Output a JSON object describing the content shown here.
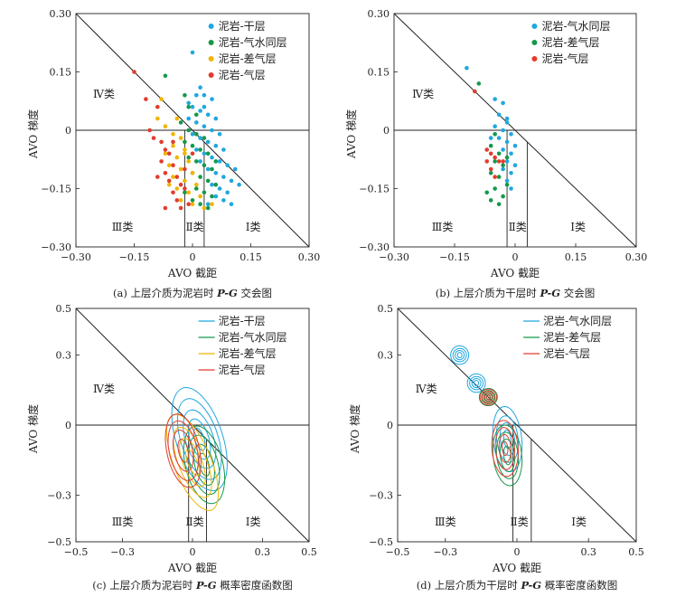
{
  "colors": {
    "blue": "#1fa7e0",
    "green": "#14994a",
    "yellow": "#f2b400",
    "red": "#e23c2e",
    "axis": "#222222"
  },
  "chart_data": [
    {
      "id": "a",
      "type": "scatter",
      "caption": "(a) 上层介质为泥岩时 P-G 交会图",
      "xlabel": "AVO 截距",
      "ylabel": "AVO 梯度",
      "xlim": [
        -0.3,
        0.3
      ],
      "ylim": [
        -0.3,
        0.3
      ],
      "xticks": [
        "−0.30",
        "−0.15",
        "0",
        "0.15",
        "0.30"
      ],
      "yticks": [
        "−0.30",
        "−0.15",
        "0",
        "0.15",
        "0.30"
      ],
      "class_labels": {
        "IV": "Ⅳ类",
        "III": "Ⅲ类",
        "II": "Ⅱ类",
        "I": "Ⅰ类"
      },
      "legend": [
        {
          "name": "泥岩-干层",
          "color": "#1fa7e0"
        },
        {
          "name": "泥岩-气水同层",
          "color": "#14994a"
        },
        {
          "name": "泥岩-差气层",
          "color": "#f2b400"
        },
        {
          "name": "泥岩-气层",
          "color": "#e23c2e"
        }
      ],
      "series": [
        {
          "name": "泥岩-干层",
          "color": "#1fa7e0",
          "points": [
            [
              0.0,
              0.2
            ],
            [
              0.02,
              0.11
            ],
            [
              0.03,
              0.09
            ],
            [
              0.05,
              0.08
            ],
            [
              0.0,
              0.06
            ],
            [
              0.02,
              0.05
            ],
            [
              0.04,
              0.04
            ],
            [
              0.06,
              0.03
            ],
            [
              -0.01,
              0.03
            ],
            [
              0.01,
              0.02
            ],
            [
              0.03,
              0.01
            ],
            [
              0.05,
              0.0
            ],
            [
              0.07,
              -0.01
            ],
            [
              0.0,
              -0.01
            ],
            [
              0.02,
              -0.02
            ],
            [
              0.04,
              -0.03
            ],
            [
              0.06,
              -0.04
            ],
            [
              0.08,
              -0.05
            ],
            [
              0.03,
              -0.06
            ],
            [
              0.05,
              -0.07
            ],
            [
              0.07,
              -0.08
            ],
            [
              0.09,
              -0.09
            ],
            [
              0.11,
              -0.1
            ],
            [
              0.04,
              -0.1
            ],
            [
              0.06,
              -0.11
            ],
            [
              0.08,
              -0.12
            ],
            [
              0.1,
              -0.13
            ],
            [
              0.12,
              -0.14
            ],
            [
              0.05,
              -0.14
            ],
            [
              0.07,
              -0.15
            ],
            [
              0.09,
              -0.16
            ],
            [
              0.06,
              -0.17
            ],
            [
              0.08,
              -0.18
            ],
            [
              0.1,
              -0.19
            ],
            [
              0.04,
              -0.19
            ],
            [
              0.02,
              -0.08
            ],
            [
              0.01,
              -0.05
            ],
            [
              -0.01,
              0.07
            ],
            [
              0.03,
              0.06
            ],
            [
              0.01,
              0.09
            ]
          ]
        },
        {
          "name": "泥岩-气水同层",
          "color": "#14994a",
          "points": [
            [
              -0.07,
              0.14
            ],
            [
              -0.02,
              0.09
            ],
            [
              -0.01,
              0.06
            ],
            [
              0.01,
              0.04
            ],
            [
              -0.03,
              0.02
            ],
            [
              -0.01,
              0.0
            ],
            [
              0.01,
              -0.01
            ],
            [
              0.03,
              -0.02
            ],
            [
              -0.02,
              -0.03
            ],
            [
              0.0,
              -0.04
            ],
            [
              0.02,
              -0.05
            ],
            [
              0.04,
              -0.06
            ],
            [
              -0.01,
              -0.07
            ],
            [
              0.01,
              -0.08
            ],
            [
              0.03,
              -0.09
            ],
            [
              0.05,
              -0.1
            ],
            [
              0.0,
              -0.11
            ],
            [
              0.02,
              -0.12
            ],
            [
              0.04,
              -0.13
            ],
            [
              0.06,
              -0.14
            ],
            [
              0.01,
              -0.15
            ],
            [
              0.03,
              -0.16
            ],
            [
              0.05,
              -0.17
            ],
            [
              0.0,
              -0.18
            ],
            [
              0.02,
              -0.19
            ],
            [
              0.04,
              -0.2
            ],
            [
              -0.02,
              -0.16
            ],
            [
              0.06,
              -0.08
            ]
          ]
        },
        {
          "name": "泥岩-差气层",
          "color": "#f2b400",
          "points": [
            [
              -0.08,
              0.08
            ],
            [
              -0.09,
              0.03
            ],
            [
              -0.07,
              0.01
            ],
            [
              -0.05,
              -0.01
            ],
            [
              -0.04,
              0.03
            ],
            [
              -0.03,
              -0.02
            ],
            [
              -0.05,
              -0.04
            ],
            [
              -0.02,
              -0.05
            ],
            [
              -0.04,
              -0.07
            ],
            [
              -0.01,
              -0.08
            ],
            [
              -0.06,
              -0.09
            ],
            [
              -0.03,
              -0.1
            ],
            [
              0.0,
              -0.11
            ],
            [
              -0.05,
              -0.12
            ],
            [
              -0.02,
              -0.13
            ],
            [
              0.01,
              -0.14
            ],
            [
              -0.04,
              -0.15
            ],
            [
              -0.01,
              -0.16
            ],
            [
              0.02,
              -0.17
            ],
            [
              -0.03,
              -0.18
            ],
            [
              0.0,
              -0.19
            ],
            [
              0.03,
              -0.2
            ],
            [
              0.05,
              -0.19
            ],
            [
              -0.06,
              -0.14
            ],
            [
              -0.02,
              -0.06
            ],
            [
              -0.07,
              -0.06
            ]
          ]
        },
        {
          "name": "泥岩-气层",
          "color": "#e23c2e",
          "points": [
            [
              -0.15,
              0.15
            ],
            [
              -0.12,
              0.08
            ],
            [
              -0.09,
              0.06
            ],
            [
              -0.11,
              0.0
            ],
            [
              -0.1,
              -0.02
            ],
            [
              -0.08,
              -0.03
            ],
            [
              -0.07,
              -0.05
            ],
            [
              -0.06,
              -0.06
            ],
            [
              -0.08,
              -0.08
            ],
            [
              -0.05,
              -0.09
            ],
            [
              -0.07,
              -0.11
            ],
            [
              -0.04,
              -0.12
            ],
            [
              -0.06,
              -0.13
            ],
            [
              -0.03,
              -0.14
            ],
            [
              -0.05,
              -0.16
            ],
            [
              -0.02,
              -0.15
            ],
            [
              -0.04,
              -0.18
            ],
            [
              -0.01,
              -0.19
            ],
            [
              -0.03,
              -0.2
            ],
            [
              -0.07,
              -0.2
            ],
            [
              -0.02,
              -0.1
            ],
            [
              0.0,
              -0.06
            ],
            [
              -0.09,
              -0.12
            ],
            [
              -0.05,
              -0.03
            ]
          ]
        }
      ]
    },
    {
      "id": "b",
      "type": "scatter",
      "caption": "(b) 上层介质为干层时 P-G 交会图",
      "xlabel": "AVO 截距",
      "ylabel": "AVO 梯度",
      "xlim": [
        -0.3,
        0.3
      ],
      "ylim": [
        -0.3,
        0.3
      ],
      "xticks": [
        "−0.30",
        "−0.15",
        "0",
        "0.15",
        "0.30"
      ],
      "yticks": [
        "−0.30",
        "−0.15",
        "0",
        "0.15",
        "0.30"
      ],
      "class_labels": {
        "IV": "Ⅳ类",
        "III": "Ⅲ类",
        "II": "Ⅱ类",
        "I": "Ⅰ类"
      },
      "legend": [
        {
          "name": "泥岩-气水同层",
          "color": "#1fa7e0"
        },
        {
          "name": "泥岩-差气层",
          "color": "#14994a"
        },
        {
          "name": "泥岩-气层",
          "color": "#e23c2e"
        }
      ],
      "series": [
        {
          "name": "泥岩-气水同层",
          "color": "#1fa7e0",
          "points": [
            [
              -0.12,
              0.16
            ],
            [
              -0.05,
              0.08
            ],
            [
              -0.03,
              0.07
            ],
            [
              -0.04,
              0.04
            ],
            [
              -0.02,
              0.03
            ],
            [
              -0.05,
              0.01
            ],
            [
              -0.03,
              0.0
            ],
            [
              -0.01,
              -0.01
            ],
            [
              -0.04,
              -0.02
            ],
            [
              -0.02,
              -0.03
            ],
            [
              0.0,
              -0.04
            ],
            [
              -0.03,
              -0.05
            ],
            [
              -0.01,
              -0.06
            ],
            [
              -0.02,
              -0.08
            ],
            [
              0.0,
              -0.09
            ],
            [
              -0.01,
              -0.11
            ],
            [
              -0.03,
              -0.1
            ],
            [
              -0.02,
              -0.13
            ],
            [
              -0.01,
              -0.15
            ],
            [
              -0.02,
              0.02
            ],
            [
              -0.06,
              -0.02
            ]
          ]
        },
        {
          "name": "泥岩-差气层",
          "color": "#14994a",
          "points": [
            [
              -0.09,
              0.12
            ],
            [
              -0.05,
              -0.01
            ],
            [
              -0.06,
              -0.04
            ],
            [
              -0.04,
              -0.06
            ],
            [
              -0.05,
              -0.08
            ],
            [
              -0.03,
              -0.09
            ],
            [
              -0.06,
              -0.11
            ],
            [
              -0.04,
              -0.12
            ],
            [
              -0.02,
              -0.14
            ],
            [
              -0.05,
              -0.15
            ],
            [
              -0.03,
              -0.17
            ],
            [
              -0.06,
              -0.18
            ],
            [
              -0.04,
              -0.19
            ],
            [
              -0.07,
              -0.16
            ],
            [
              -0.02,
              -0.07
            ]
          ]
        },
        {
          "name": "泥岩-气层",
          "color": "#e23c2e",
          "points": [
            [
              -0.1,
              0.1
            ],
            [
              -0.06,
              -0.06
            ],
            [
              -0.05,
              -0.07
            ],
            [
              -0.07,
              -0.08
            ],
            [
              -0.04,
              -0.08
            ],
            [
              -0.06,
              -0.1
            ],
            [
              -0.03,
              -0.08
            ],
            [
              -0.05,
              -0.12
            ],
            [
              -0.07,
              -0.05
            ]
          ]
        }
      ]
    },
    {
      "id": "c",
      "type": "contour",
      "caption": "(c) 上层介质为泥岩时 P-G 概率密度函数图",
      "xlabel": "AVO 截距",
      "ylabel": "AVO 梯度",
      "xlim": [
        -0.5,
        0.5
      ],
      "ylim": [
        -0.5,
        0.5
      ],
      "xticks": [
        "−0.5",
        "−0.3",
        "0",
        "0.3",
        "0.5"
      ],
      "yticks": [
        "−0.5",
        "−0.3",
        "0",
        "0.3",
        "0.5"
      ],
      "class_labels": {
        "IV": "Ⅳ类",
        "III": "Ⅲ类",
        "II": "Ⅱ类",
        "I": "Ⅰ类"
      },
      "legend": [
        {
          "name": "泥岩-干层",
          "color": "#1fa7e0"
        },
        {
          "name": "泥岩-气水同层",
          "color": "#14994a"
        },
        {
          "name": "泥岩-差气层",
          "color": "#f2b400"
        },
        {
          "name": "泥岩-气层",
          "color": "#e23c2e"
        }
      ],
      "series": [
        {
          "name": "泥岩-干层",
          "color": "#1fa7e0",
          "centers": [
            [
              0.03,
              -0.06
            ]
          ],
          "rx": [
            0.02,
            0.04,
            0.06,
            0.08,
            0.1
          ],
          "ry": [
            0.05,
            0.09,
            0.13,
            0.18,
            0.23
          ],
          "tilt": 18
        },
        {
          "name": "泥岩-气水同层",
          "color": "#14994a",
          "centers": [
            [
              0.05,
              -0.17
            ]
          ],
          "rx": [
            0.02,
            0.04,
            0.06,
            0.08
          ],
          "ry": [
            0.05,
            0.09,
            0.13,
            0.17
          ],
          "tilt": 14
        },
        {
          "name": "泥岩-差气层",
          "color": "#f2b400",
          "centers": [
            [
              0.0,
              -0.16
            ]
          ],
          "rx": [
            0.02,
            0.04,
            0.06,
            0.08
          ],
          "ry": [
            0.06,
            0.11,
            0.16,
            0.22
          ],
          "tilt": 22
        },
        {
          "name": "泥岩-气层",
          "color": "#e23c2e",
          "centers": [
            [
              -0.04,
              -0.11
            ]
          ],
          "rx": [
            0.02,
            0.04,
            0.06,
            0.07
          ],
          "ry": [
            0.05,
            0.09,
            0.13,
            0.16
          ],
          "tilt": 12
        }
      ]
    },
    {
      "id": "d",
      "type": "contour",
      "caption": "(d) 上层介质为干层时 P-G 概率密度函数图",
      "xlabel": "AVO 截距",
      "ylabel": "AVO 梯度",
      "xlim": [
        -0.5,
        0.5
      ],
      "ylim": [
        -0.5,
        0.5
      ],
      "xticks": [
        "−0.5",
        "−0.3",
        "0",
        "0.3",
        "0.5"
      ],
      "yticks": [
        "−0.5",
        "−0.3",
        "0",
        "0.3",
        "0.5"
      ],
      "class_labels": {
        "IV": "Ⅳ类",
        "III": "Ⅲ类",
        "II": "Ⅱ类",
        "I": "Ⅰ类"
      },
      "legend": [
        {
          "name": "泥岩-气水同层",
          "color": "#1fa7e0"
        },
        {
          "name": "泥岩-差气层",
          "color": "#14994a"
        },
        {
          "name": "泥岩-气层",
          "color": "#e23c2e"
        }
      ],
      "series": [
        {
          "name": "泥岩-气水同层",
          "color": "#1fa7e0",
          "centers": [
            [
              -0.04,
              -0.06
            ],
            [
              -0.24,
              0.3
            ],
            [
              -0.17,
              0.18
            ]
          ],
          "rx": [
            0.015,
            0.03,
            0.045,
            0.06
          ],
          "ry": [
            0.04,
            0.07,
            0.1,
            0.14
          ],
          "tilt": 6
        },
        {
          "name": "泥岩-差气层",
          "color": "#14994a",
          "centers": [
            [
              -0.04,
              -0.13
            ],
            [
              -0.12,
              0.12
            ]
          ],
          "rx": [
            0.015,
            0.03,
            0.045,
            0.06
          ],
          "ry": [
            0.04,
            0.07,
            0.1,
            0.13
          ],
          "tilt": 6
        },
        {
          "name": "泥岩-气层",
          "color": "#e23c2e",
          "centers": [
            [
              -0.05,
              -0.1
            ],
            [
              -0.12,
              0.12
            ]
          ],
          "rx": [
            0.012,
            0.025,
            0.04,
            0.055
          ],
          "ry": [
            0.03,
            0.06,
            0.09,
            0.12
          ],
          "tilt": 4
        }
      ]
    }
  ]
}
